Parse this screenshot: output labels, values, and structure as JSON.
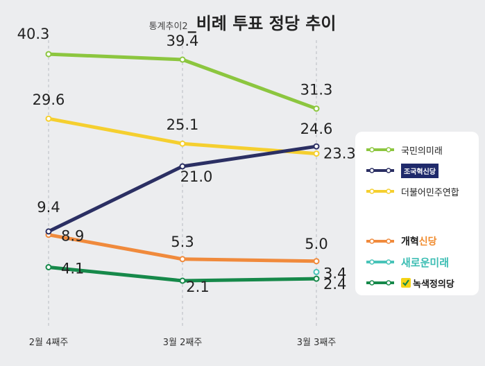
{
  "title": {
    "prefix": "통계추이2",
    "main": "비례 투표 정당 추이"
  },
  "chart_data": {
    "type": "line",
    "title": "비례 투표 정당 추이",
    "categories": [
      "2월 4째주",
      "3월 2째주",
      "3월 3째주"
    ],
    "ylim": [
      0,
      42
    ],
    "grid": false,
    "legend_position": "right",
    "series": [
      {
        "name": "국민의미래",
        "color": "#8cc63f",
        "values": [
          40.3,
          39.4,
          31.3
        ],
        "labels": [
          "40.3",
          "39.4",
          "31.3"
        ]
      },
      {
        "name": "조국혁신당",
        "color": "#2b2f63",
        "values": [
          9.4,
          21.0,
          24.6
        ],
        "labels": [
          "9.4",
          "21.0",
          "24.6"
        ]
      },
      {
        "name": "더불어민주연합",
        "color": "#f5cf2f",
        "values": [
          29.6,
          25.1,
          23.3
        ],
        "labels": [
          "29.6",
          "25.1",
          "23.3"
        ]
      },
      {
        "name": "개혁신당",
        "color": "#f08a3c",
        "values": [
          8.9,
          5.3,
          5.0
        ],
        "labels": [
          "8.9",
          "5.3",
          "5.0"
        ]
      },
      {
        "name": "새로운미래",
        "color": "#48c3b8",
        "values": [
          null,
          null,
          3.4
        ],
        "labels": [
          "",
          "",
          "3.4"
        ]
      },
      {
        "name": "녹색정의당",
        "color": "#16894a",
        "values": [
          4.1,
          2.1,
          2.4
        ],
        "labels": [
          "4.1",
          "2.1",
          "2.4"
        ]
      }
    ]
  },
  "legend": {
    "items": [
      {
        "label": "국민의미래",
        "color": "#8cc63f"
      },
      {
        "label": "조국혁신당",
        "color": "#2b2f63"
      },
      {
        "label": "더불어민주연합",
        "color": "#f5cf2f"
      },
      {
        "label_a": "개혁",
        "label_b": "신당",
        "color": "#f08a3c"
      },
      {
        "label": "새로운미래",
        "color": "#48c3b8"
      },
      {
        "label": "녹색정의당",
        "color": "#16894a"
      }
    ]
  }
}
